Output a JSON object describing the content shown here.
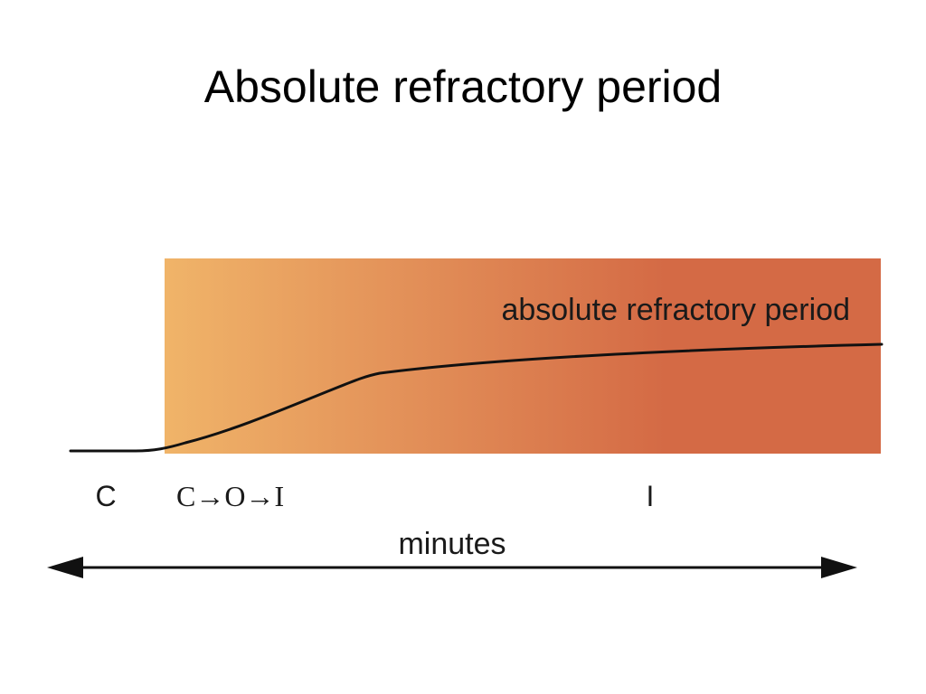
{
  "slide": {
    "title": "Absolute refractory period"
  },
  "figure": {
    "band_label": "absolute refractory period",
    "state_labels": {
      "closed": "C",
      "transition": "C→O→I",
      "inactivated": "I"
    },
    "time_label": "minutes",
    "colors": {
      "band_start": "#F0B469",
      "band_mid": "#E28F58",
      "band_end": "#D46A45",
      "curve": "#111111",
      "text": "#1a1a1a"
    }
  }
}
